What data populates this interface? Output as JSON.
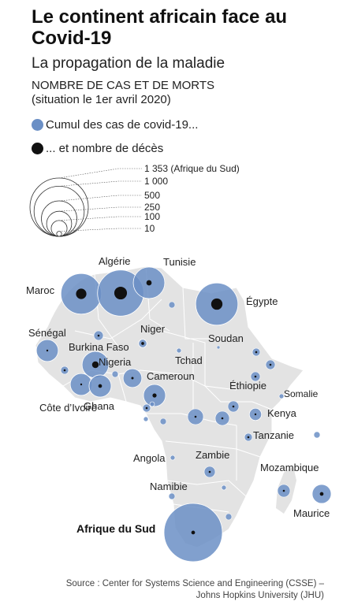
{
  "title": "Le continent africain face au Covid-19",
  "subtitle": "La propagation de la maladie",
  "section_line1": "NOMBRE DE CAS ET DE MORTS",
  "section_line2": "(situation le 1er avril 2020)",
  "legend": {
    "cases": "Cumul des cas de covid-19...",
    "deaths": "... et nombre de décès"
  },
  "scale": [
    {
      "value": 1353,
      "label": "1 353 (Afrique du Sud)"
    },
    {
      "value": 1000,
      "label": "1 000"
    },
    {
      "value": 500,
      "label": "500"
    },
    {
      "value": 250,
      "label": "250"
    },
    {
      "value": 100,
      "label": "100"
    },
    {
      "value": 10,
      "label": "10"
    }
  ],
  "countries": [
    {
      "name": "Maroc",
      "cases": 654,
      "deaths": 39
    },
    {
      "name": "Algérie",
      "cases": 847,
      "deaths": 58
    },
    {
      "name": "Tunisie",
      "cases": 394,
      "deaths": 10
    },
    {
      "name": "Égypte",
      "cases": 710,
      "deaths": 46
    },
    {
      "name": "Sénégal",
      "cases": 190,
      "deaths": 1
    },
    {
      "name": "Burkina Faso",
      "cases": 282,
      "deaths": 16
    },
    {
      "name": "Niger",
      "cases": 27,
      "deaths": 3
    },
    {
      "name": "Nigeria",
      "cases": 139,
      "deaths": 2
    },
    {
      "name": "Côte d'Ivoire",
      "cases": 190,
      "deaths": 1
    },
    {
      "name": "Ghana",
      "cases": 195,
      "deaths": 5
    },
    {
      "name": "Cameroun",
      "cases": 193,
      "deaths": 6
    },
    {
      "name": "Kenya",
      "cases": 59,
      "deaths": 1
    },
    {
      "name": "Maurice",
      "cases": 143,
      "deaths": 5
    },
    {
      "name": "Afrique du Sud",
      "cases": 1353,
      "deaths": 5
    }
  ],
  "map_labels": [
    "Maroc",
    "Algérie",
    "Tunisie",
    "Égypte",
    "Sénégal",
    "Burkina Faso",
    "Niger",
    "Soudan",
    "Nigeria",
    "Tchad",
    "Cameroun",
    "Éthiopie",
    "Somalie",
    "Côte d’Ivoire",
    "Ghana",
    "Kenya",
    "Tanzanie",
    "Angola",
    "Zambie",
    "Mozambique",
    "Namibie",
    "Maurice",
    "Afrique du Sud"
  ],
  "source_line1": "Source : Center for Systems Science and Engineering (CSSE) –",
  "source_line2": "Johns Hopkins University (JHU)",
  "colors": {
    "cases": "#6b8fc5",
    "deaths": "#111111",
    "land": "#e3e3e3",
    "border": "#ffffff"
  }
}
